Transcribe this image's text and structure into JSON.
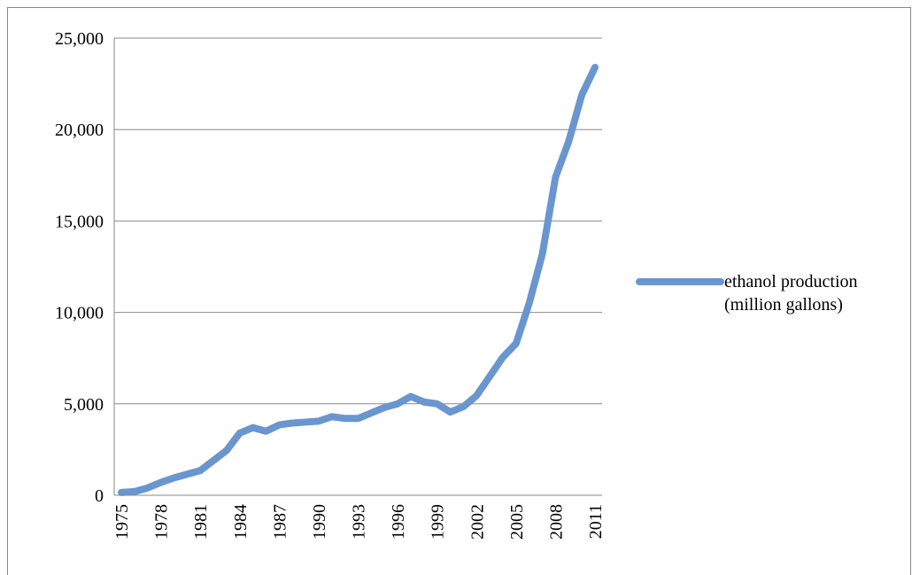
{
  "chart_data": {
    "type": "line",
    "categories": [
      "1975",
      null,
      null,
      "1978",
      null,
      null,
      "1981",
      null,
      null,
      "1984",
      null,
      null,
      "1987",
      null,
      null,
      "1990",
      null,
      null,
      "1993",
      null,
      null,
      "1996",
      null,
      null,
      "1999",
      null,
      null,
      "2002",
      null,
      null,
      "2005",
      null,
      null,
      "2008",
      null,
      null,
      "2011"
    ],
    "series": [
      {
        "name": "ethanol production (million gallons)",
        "color": "#6a96cf",
        "values": [
          150,
          200,
          400,
          700,
          950,
          1150,
          1350,
          1900,
          2450,
          3400,
          3700,
          3500,
          3850,
          3950,
          4000,
          4050,
          4300,
          4200,
          4200,
          4500,
          4800,
          5000,
          5400,
          5100,
          5000,
          4550,
          4850,
          5450,
          6500,
          7550,
          8300,
          10500,
          13200,
          17400,
          19350,
          21900,
          23400
        ]
      }
    ],
    "ylim": [
      0,
      25000
    ],
    "yticks": [
      0,
      {
        "value": 5000,
        "label": "5,000"
      },
      {
        "value": 10000,
        "label": "10,000"
      },
      {
        "value": 15000,
        "label": "15,000"
      },
      {
        "value": 20000,
        "label": "20,000"
      },
      {
        "value": 25000,
        "label": "25,000"
      }
    ],
    "grid": true,
    "legend": "right"
  }
}
